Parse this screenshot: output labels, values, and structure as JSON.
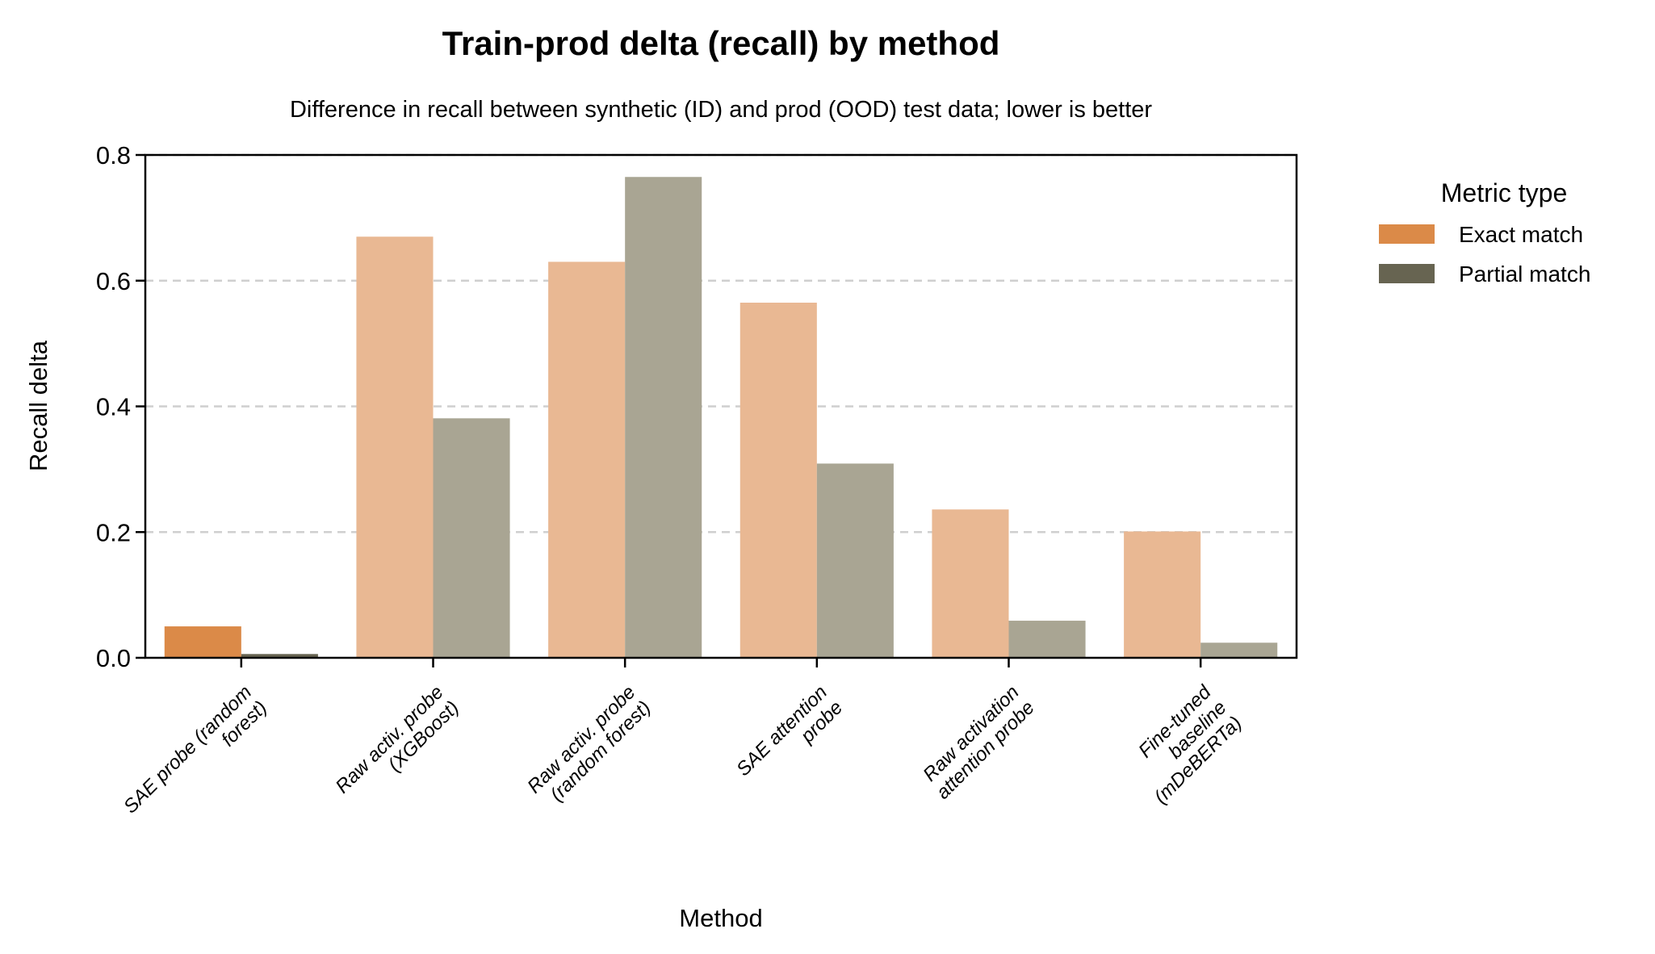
{
  "chart_data": {
    "type": "bar",
    "title": "Train-prod delta (recall) by method",
    "subtitle": "Difference in recall between synthetic (ID) and prod (OOD) test data; lower is better",
    "xlabel": "Method",
    "ylabel": "Recall delta",
    "ylim": [
      0,
      0.8
    ],
    "yticks": [
      "0.0",
      "0.2",
      "0.4",
      "0.6",
      "0.8"
    ],
    "grid": "horizontal dashed",
    "legend": {
      "title": "Metric type",
      "placement": "outside-right"
    },
    "categories": [
      [
        "SAE probe (random",
        "forest)"
      ],
      [
        "Raw activ. probe",
        "(XGBoost)"
      ],
      [
        "Raw activ. probe",
        "(random forest)"
      ],
      [
        "SAE attention",
        "probe"
      ],
      [
        "Raw activation",
        "attention probe"
      ],
      [
        "Fine-tuned",
        "baseline",
        "(mDeBERTa)"
      ]
    ],
    "highlighted_category": 0,
    "series": [
      {
        "name": "Exact match",
        "color": "#DB8A48",
        "muted_color": "#E9B893",
        "values": [
          0.05,
          0.67,
          0.63,
          0.565,
          0.236,
          0.201
        ]
      },
      {
        "name": "Partial match",
        "color": "#676451",
        "muted_color": "#A9A593",
        "values": [
          0.006,
          0.381,
          0.765,
          0.309,
          0.059,
          0.024
        ]
      }
    ]
  }
}
